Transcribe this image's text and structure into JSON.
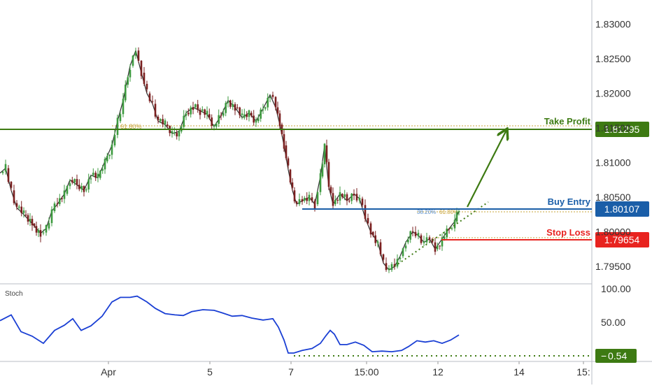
{
  "chart_data": [
    {
      "type": "candlestick",
      "price_axis": {
        "ticks": [
          "1.83000",
          "1.82500",
          "1.82000",
          "1.81500",
          "1.81000",
          "1.80500",
          "1.80000",
          "1.79500"
        ],
        "ylim": [
          1.7925,
          1.8335
        ]
      },
      "time_axis": {
        "ticks": [
          "Apr",
          "5",
          "7",
          "15:00",
          "12",
          "14",
          "15:"
        ]
      },
      "levels": [
        {
          "label": "Take Profit",
          "value": "1.81295",
          "color": "#3d7a12"
        },
        {
          "label": "Buy Entry",
          "value": "1.80107",
          "color": "#1a5ea8"
        },
        {
          "label": "Stop Loss",
          "value": "1.79654",
          "color": "#e8231f"
        }
      ],
      "fib_annotations": [
        "61.80%",
        "38.20%",
        "61.80%"
      ],
      "price_path": [
        [
          0,
          1.8085
        ],
        [
          8,
          1.8092
        ],
        [
          16,
          1.806
        ],
        [
          24,
          1.8035
        ],
        [
          34,
          1.8025
        ],
        [
          46,
          1.8012
        ],
        [
          58,
          1.7998
        ],
        [
          66,
          1.8005
        ],
        [
          74,
          1.803
        ],
        [
          82,
          1.804
        ],
        [
          92,
          1.8055
        ],
        [
          100,
          1.8075
        ],
        [
          110,
          1.8068
        ],
        [
          120,
          1.806
        ],
        [
          130,
          1.8082
        ],
        [
          140,
          1.8078
        ],
        [
          150,
          1.8102
        ],
        [
          160,
          1.8125
        ],
        [
          168,
          1.816
        ],
        [
          176,
          1.819
        ],
        [
          186,
          1.824
        ],
        [
          194,
          1.8262
        ],
        [
          202,
          1.823
        ],
        [
          210,
          1.82
        ],
        [
          218,
          1.8185
        ],
        [
          226,
          1.816
        ],
        [
          236,
          1.8155
        ],
        [
          246,
          1.8142
        ],
        [
          256,
          1.8145
        ],
        [
          266,
          1.8172
        ],
        [
          276,
          1.818
        ],
        [
          286,
          1.8175
        ],
        [
          296,
          1.817
        ],
        [
          306,
          1.8152
        ],
        [
          316,
          1.8168
        ],
        [
          326,
          1.819
        ],
        [
          336,
          1.818
        ],
        [
          346,
          1.8165
        ],
        [
          356,
          1.8172
        ],
        [
          366,
          1.816
        ],
        [
          376,
          1.8178
        ],
        [
          386,
          1.8198
        ],
        [
          394,
          1.818
        ],
        [
          400,
          1.8155
        ],
        [
          406,
          1.8125
        ],
        [
          412,
          1.809
        ],
        [
          418,
          1.806
        ],
        [
          424,
          1.804
        ],
        [
          432,
          1.8045
        ],
        [
          442,
          1.805
        ],
        [
          450,
          1.804
        ],
        [
          458,
          1.808
        ],
        [
          464,
          1.8125
        ],
        [
          470,
          1.8065
        ],
        [
          476,
          1.804
        ],
        [
          486,
          1.8055
        ],
        [
          496,
          1.8045
        ],
        [
          506,
          1.8055
        ],
        [
          514,
          1.8048
        ],
        [
          522,
          1.802
        ],
        [
          530,
          1.8
        ],
        [
          540,
          1.7985
        ],
        [
          548,
          1.7955
        ],
        [
          556,
          1.7945
        ],
        [
          564,
          1.795
        ],
        [
          572,
          1.7965
        ],
        [
          580,
          1.7985
        ],
        [
          590,
          1.8
        ],
        [
          598,
          1.7995
        ],
        [
          606,
          1.7985
        ],
        [
          614,
          1.799
        ],
        [
          622,
          1.7975
        ],
        [
          632,
          1.799
        ],
        [
          642,
          1.8005
        ],
        [
          650,
          1.8015
        ],
        [
          656,
          1.803
        ]
      ],
      "stochastic": {
        "label": "Stoch",
        "ticks": [
          "100.00",
          "50.00"
        ],
        "current": "0.54",
        "ylim": [
          -8,
          112
        ],
        "line": [
          [
            0,
            55
          ],
          [
            16,
            64
          ],
          [
            30,
            38
          ],
          [
            46,
            31
          ],
          [
            62,
            20
          ],
          [
            78,
            40
          ],
          [
            92,
            48
          ],
          [
            104,
            58
          ],
          [
            116,
            40
          ],
          [
            130,
            47
          ],
          [
            146,
            62
          ],
          [
            160,
            84
          ],
          [
            172,
            91
          ],
          [
            186,
            91
          ],
          [
            196,
            93
          ],
          [
            210,
            84
          ],
          [
            222,
            74
          ],
          [
            236,
            66
          ],
          [
            250,
            64
          ],
          [
            262,
            63
          ],
          [
            274,
            69
          ],
          [
            290,
            72
          ],
          [
            306,
            71
          ],
          [
            318,
            67
          ],
          [
            332,
            62
          ],
          [
            346,
            63
          ],
          [
            360,
            59
          ],
          [
            376,
            56
          ],
          [
            390,
            58
          ],
          [
            398,
            45
          ],
          [
            406,
            25
          ],
          [
            412,
            5
          ],
          [
            420,
            5
          ],
          [
            432,
            9
          ],
          [
            446,
            12
          ],
          [
            458,
            20
          ],
          [
            466,
            32
          ],
          [
            472,
            40
          ],
          [
            478,
            34
          ],
          [
            486,
            18
          ],
          [
            496,
            18
          ],
          [
            508,
            22
          ],
          [
            520,
            17
          ],
          [
            532,
            7
          ],
          [
            546,
            8
          ],
          [
            560,
            7
          ],
          [
            574,
            9
          ],
          [
            584,
            15
          ],
          [
            596,
            24
          ],
          [
            608,
            22
          ],
          [
            620,
            24
          ],
          [
            632,
            20
          ],
          [
            644,
            25
          ],
          [
            656,
            33
          ]
        ]
      }
    }
  ]
}
